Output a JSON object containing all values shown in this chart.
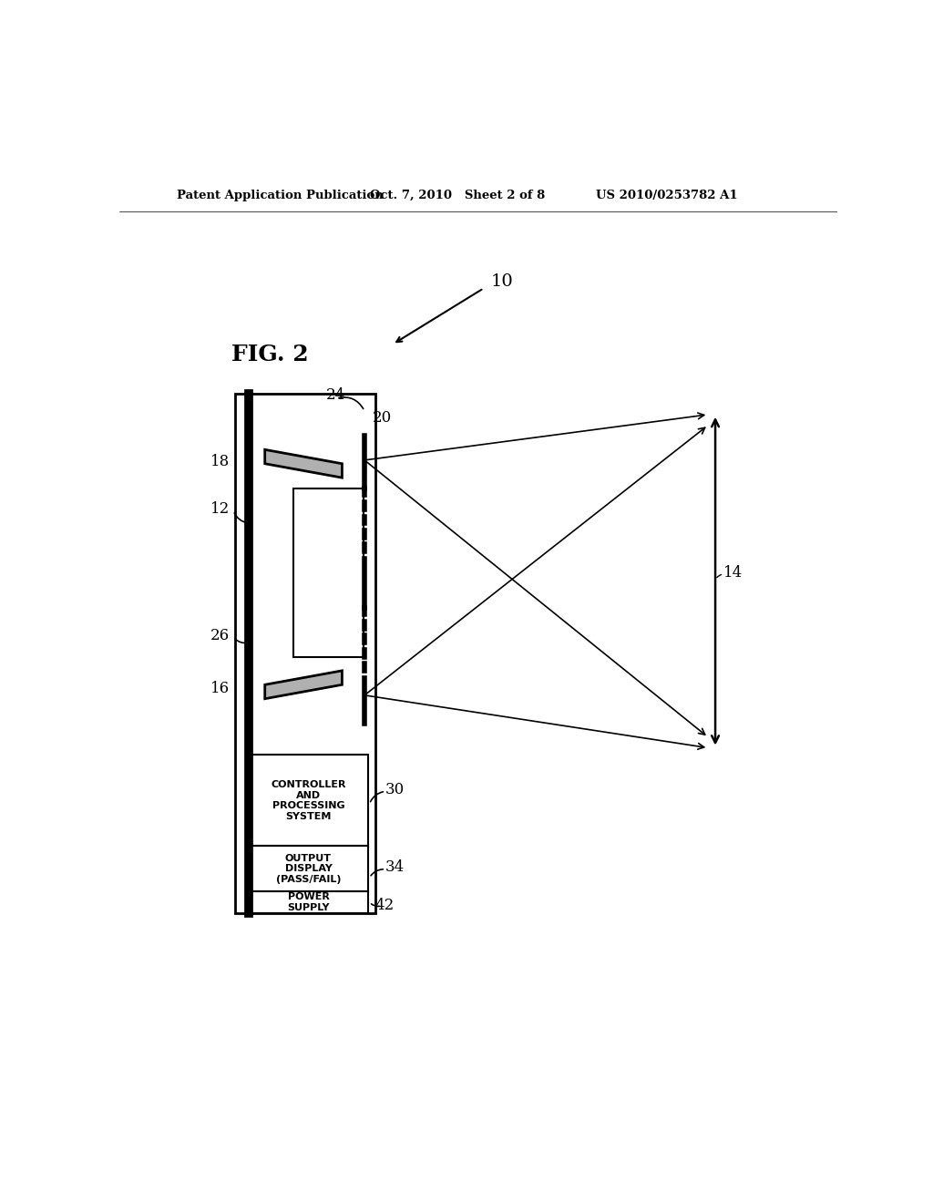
{
  "bg_color": "#ffffff",
  "header_left": "Patent Application Publication",
  "header_mid": "Oct. 7, 2010   Sheet 2 of 8",
  "header_right": "US 2010/0253782 A1",
  "fig_label": "FIG. 2",
  "label_10": "10",
  "label_12": "12",
  "label_14": "14",
  "label_16": "16",
  "label_18": "18",
  "label_20": "20",
  "label_24": "24",
  "label_26": "26",
  "label_30": "30",
  "label_34": "34",
  "label_42": "42",
  "box_labels": [
    "CONTROLLER\nAND\nPROCESSING\nSYSTEM",
    "OUTPUT\nDISPLAY\n(PASS/FAIL)",
    "POWER\nSUPPLY"
  ]
}
